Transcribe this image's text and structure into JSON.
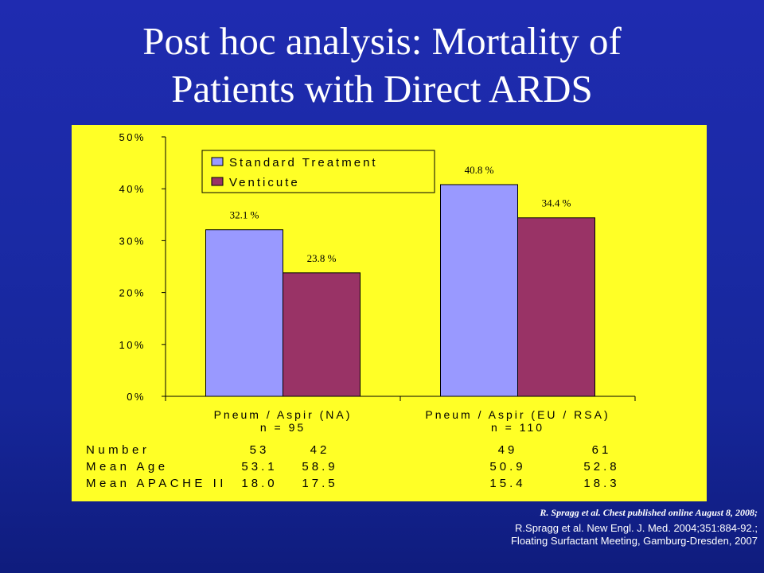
{
  "slide": {
    "title_line1": "Post hoc analysis: Mortality of",
    "title_line2": "Patients with Direct ARDS"
  },
  "chart_data": {
    "type": "bar",
    "title": "Post hoc analysis: Mortality of Patients with Direct ARDS",
    "xlabel": "",
    "ylabel": "",
    "ylim": [
      0,
      50
    ],
    "yticks": [
      "0%",
      "10%",
      "20%",
      "30%",
      "40%",
      "50%"
    ],
    "ytick_values": [
      0,
      10,
      20,
      30,
      40,
      50
    ],
    "categories": [
      {
        "line1": "Pneum / Aspir (NA)",
        "line2": "n = 95"
      },
      {
        "line1": "Pneum / Aspir (EU / RSA)",
        "line2": "n = 110"
      }
    ],
    "series": [
      {
        "name": "Standard Treatment",
        "color": "#9999ff",
        "values": [
          32.1,
          40.8
        ],
        "labels": [
          "32.1 %",
          "40.8 %"
        ]
      },
      {
        "name": "Venticute",
        "color": "#993366",
        "values": [
          23.8,
          34.4
        ],
        "labels": [
          "23.8 %",
          "34.4 %"
        ]
      }
    ],
    "legend_position": "top-left",
    "table": [
      {
        "label": "Number",
        "values": [
          "53",
          "42",
          "49",
          "61"
        ]
      },
      {
        "label": "Mean Age",
        "values": [
          "53.1",
          "58.9",
          "50.9",
          "52.8"
        ]
      },
      {
        "label": "Mean APACHE II",
        "values": [
          "18.0",
          "17.5",
          "15.4",
          "18.3"
        ]
      }
    ]
  },
  "references": {
    "ref1": "R. Spragg et al. Chest published online August 8, 2008;",
    "ref2": "R.Spragg et al. New Engl. J. Med. 2004;351:884-92.;",
    "ref3": "Floating Surfactant Meeting, Gamburg-Dresden, 2007"
  },
  "colors": {
    "background": "#1a2aa5",
    "panel": "#ffff26",
    "standard": "#9999ff",
    "venticute": "#993366"
  }
}
